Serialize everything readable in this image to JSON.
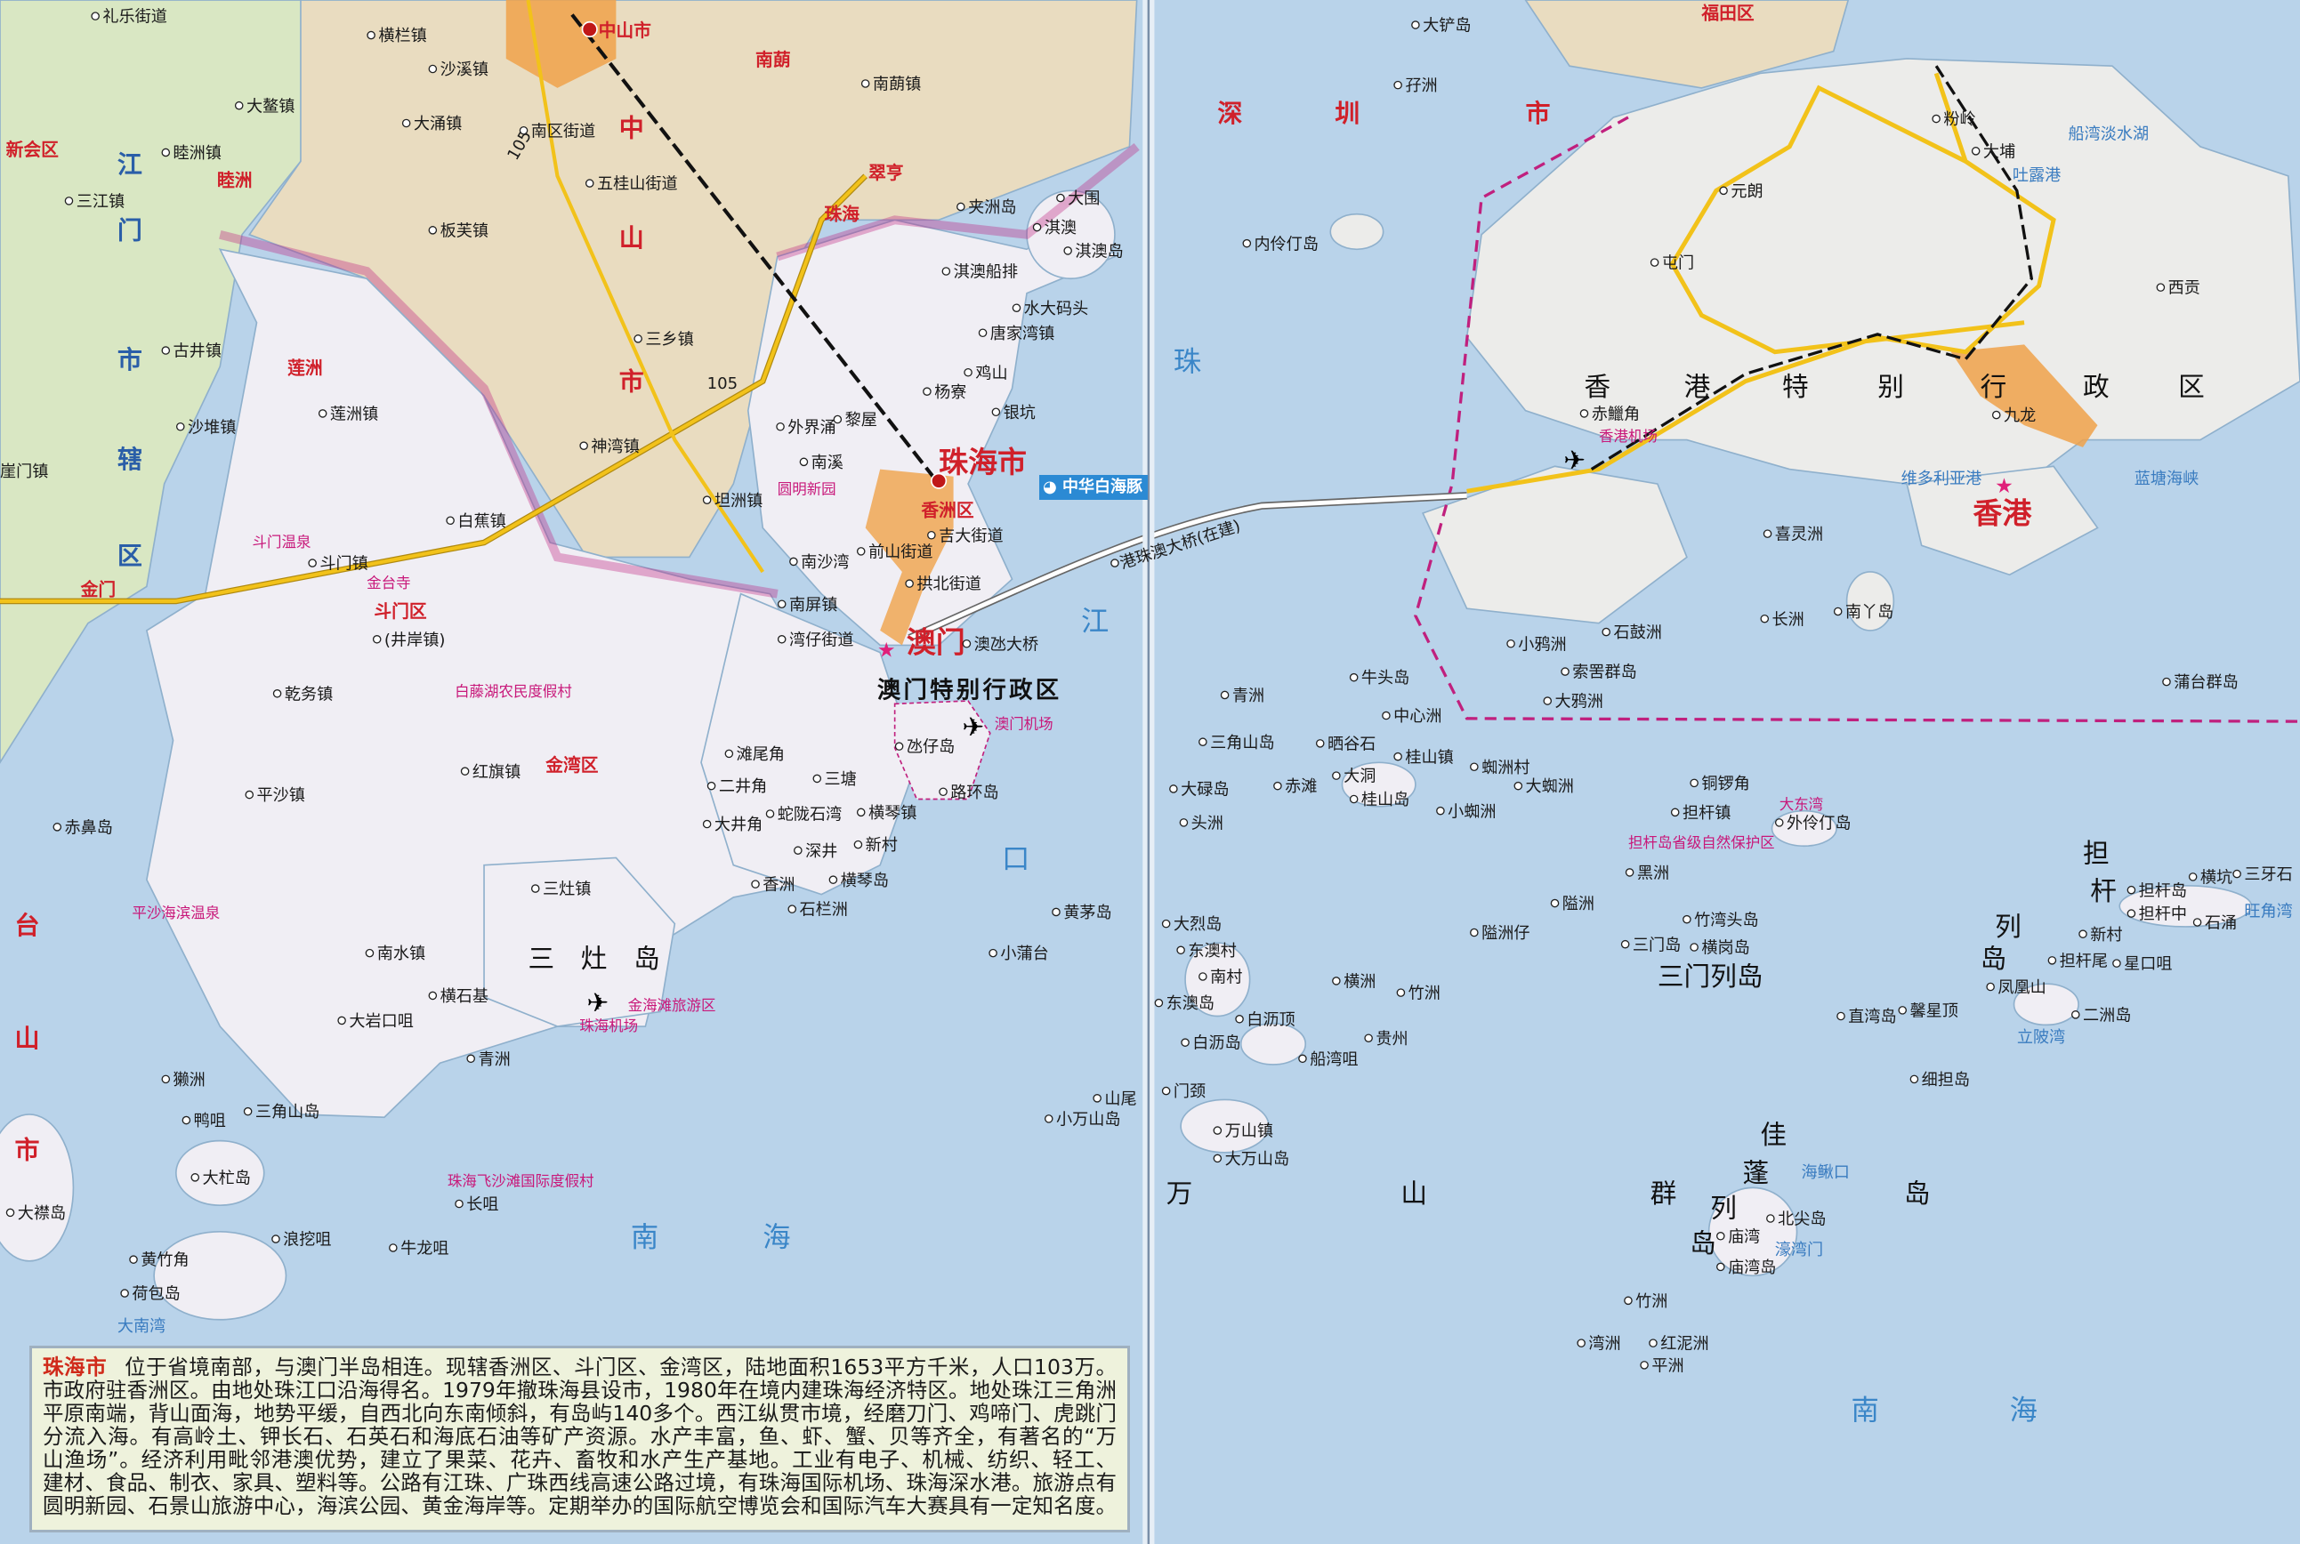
{
  "colors": {
    "sea": "#b9d3ea",
    "zhuhai_land": "#f0eef4",
    "zhongshan_land": "#e9dcc0",
    "jiangmen_land": "#d9e7c3",
    "hk_land": "#ececea",
    "urban": "#f0a24a",
    "boundary": "#c0207e",
    "road": "#f2c21a"
  },
  "info": {
    "title": "珠海市",
    "lines": [
      "位于省境南部，与澳门半岛相连。现辖香洲区、斗门区、金湾区，陆地面积1653平方千米，人口103万。",
      "市政府驻香洲区。由地处珠江口沿海得名。1979年撤珠海县设市，1980年在境内建珠海经济特区。地处珠江三角洲",
      "平原南端，背山面海，地势平缓，自西北向东南倾斜，有岛屿140多个。西江纵贯市境，经磨刀门、鸡啼门、虎跳门",
      "分流入海。有高岭土、钾长石、石英石和海底石油等矿产资源。水产丰富，鱼、虾、蟹、贝等齐全，有著名的“万",
      "山渔场”。经济利用毗邻港澳优势，建立了果菜、花卉、畜牧和水产生产基地。工业有电子、机械、纺织、轻工、",
      "建材、食品、制衣、家具、塑料等。公路有江珠、广珠西线高速公路过境，有珠海国际机场、珠海深水港。旅游点有",
      "圆明新园、石景山旅游中心，海滨公园、黄金海岸等。定期举办的国际航空博览会和国际汽车大赛具有一定知名度。"
    ]
  },
  "badge": {
    "dolphin": "中华白海豚"
  },
  "road_numbers": [
    "105",
    "105"
  ],
  "labels": [
    "礼乐街道",
    "新会区",
    "睦洲镇",
    "睦洲",
    "三江镇",
    "古井镇",
    "沙堆镇",
    "崖门镇",
    "江",
    "门",
    "市",
    "辖",
    "区",
    "台",
    "山",
    "市",
    "中山市",
    "横栏镇",
    "沙溪镇",
    "大鳌镇",
    "大涌镇",
    "南区街道",
    "南蓢",
    "南蓢镇",
    "五桂山街道",
    "板芙镇",
    "翠亨",
    "珠海",
    "中",
    "山",
    "市",
    "三乡镇",
    "神湾镇",
    "坦洲镇",
    "夹洲岛",
    "大围",
    "淇澳",
    "淇澳岛",
    "淇澳船排",
    "水大码头",
    "唐家湾镇",
    "鸡山",
    "银坑",
    "杨寮",
    "外界涌",
    "南溪",
    "黎屋",
    "圆明新园",
    "珠海市",
    "香洲区",
    "吉大街道",
    "前山街道",
    "南沙湾",
    "南屏镇",
    "拱北街道",
    "湾仔街道",
    "澳门",
    "澳氹大桥",
    "澳门特别行政区",
    "澳门机场",
    "氹仔岛",
    "路环岛",
    "横琴镇",
    "横琴岛",
    "石栏洲",
    "新村",
    "深井",
    "香洲",
    "大井角",
    "二井角",
    "滩尾角",
    "蛇陇石湾",
    "三塘",
    "莲洲",
    "莲洲镇",
    "斗门温泉",
    "斗门镇",
    "金台寺",
    "斗门区",
    "(井岸镇)",
    "白蕉镇",
    "乾务镇",
    "平沙镇",
    "红旗镇",
    "金湾区",
    "南水镇",
    "三灶镇",
    "三　灶　岛",
    "珠海机场",
    "金海滩旅游区",
    "平沙海滨温泉",
    "大杧岛",
    "荷包岛",
    "大襟岛",
    "黄竹角",
    "浪挖咀",
    "牛龙咀",
    "长咀",
    "三角山岛",
    "鸭咀",
    "獭洲",
    "青洲",
    "大岩口咀",
    "横石基",
    "珠海飞沙滩国际度假村",
    "赤鼻岛",
    "金门",
    "白藤湖农民度假村",
    "大铲岛",
    "孖洲",
    "深",
    "圳",
    "市",
    "内伶仃岛",
    "珠",
    "江",
    "口",
    "福田区",
    "粉岭",
    "大埔",
    "元朗",
    "屯门",
    "西贡",
    "九龙",
    "香港",
    "香",
    "港",
    "特",
    "别",
    "行",
    "政",
    "区",
    "赤鱲角",
    "香港机场",
    "喜灵洲",
    "小鸦洲",
    "石鼓洲",
    "长洲",
    "南丫岛",
    "索罟群岛",
    "大鸦洲",
    "蒲台群岛",
    "维多利亚港",
    "蓝塘海峡",
    "吐露港",
    "船湾淡水湖",
    "青洲",
    "牛头岛",
    "中心洲",
    "三角山岛",
    "晒谷石",
    "桂山镇",
    "大洞",
    "桂山岛",
    "大碌岛",
    "赤滩",
    "头洲",
    "蜘洲村",
    "大蜘洲",
    "小蜘洲",
    "铜锣角",
    "担杆镇",
    "大东湾",
    "外伶仃岛",
    "担杆岛省级自然保护区",
    "黑洲",
    "隘洲",
    "隘洲仔",
    "三门岛",
    "竹湾头岛",
    "横岗岛",
    "三门列岛",
    "担杆岛",
    "担杆中",
    "新村",
    "横坑",
    "三牙石",
    "石涌",
    "旺角湾",
    "担杆尾",
    "星口咀",
    "凤凰山",
    "二洲岛",
    "直湾岛",
    "馨星顶",
    "立陂湾",
    "细担岛",
    "担",
    "杆",
    "列",
    "岛",
    "大烈岛",
    "东澳村",
    "南村",
    "东澳岛",
    "横洲",
    "竹洲",
    "白沥顶",
    "白沥岛",
    "船湾咀",
    "贵州",
    "黄茅岛",
    "小蒲台",
    "山尾",
    "门颈",
    "小万山岛",
    "万山镇",
    "大万山岛",
    "万",
    "山",
    "群",
    "岛",
    "佳",
    "蓬",
    "列",
    "岛",
    "海鳅口",
    "北尖岛",
    "庙湾",
    "庙湾岛",
    "濠湾门",
    "竹洲",
    "湾洲",
    "红泥洲",
    "平洲",
    "南",
    "海",
    "南",
    "海",
    "大南湾",
    "港珠澳大桥(在建)"
  ]
}
